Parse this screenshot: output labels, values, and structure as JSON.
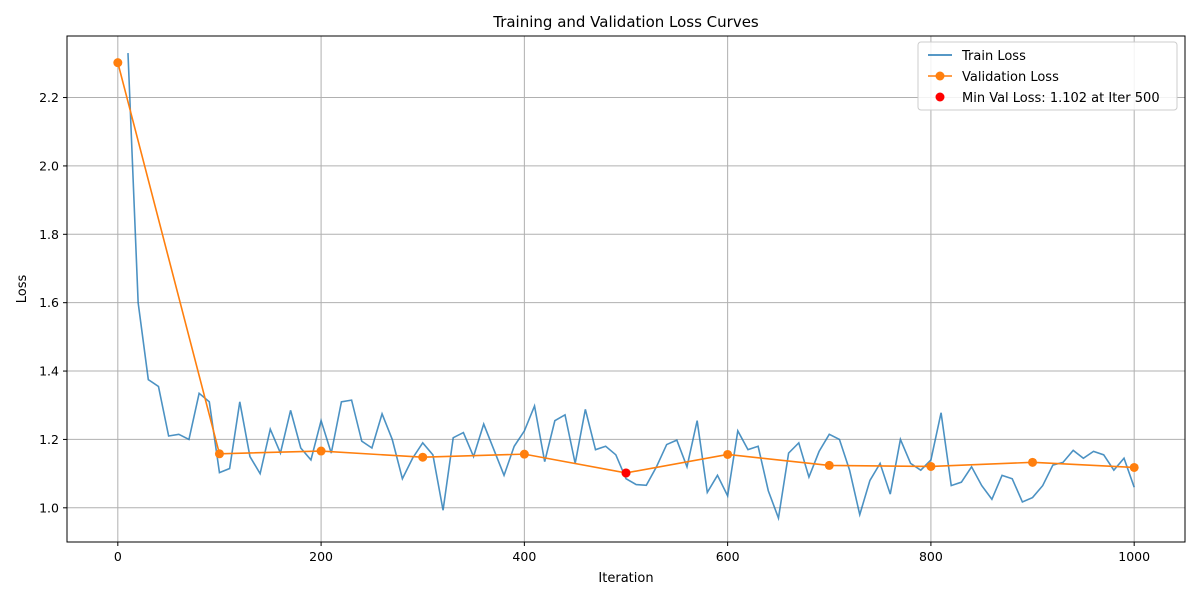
{
  "chart_data": {
    "type": "line",
    "title": "Training and Validation Loss Curves",
    "xlabel": "Iteration",
    "ylabel": "Loss",
    "xlim": [
      -50,
      1050
    ],
    "ylim": [
      0.9,
      2.38
    ],
    "xticks": [
      0,
      200,
      400,
      600,
      800,
      1000
    ],
    "yticks": [
      1.0,
      1.2,
      1.4,
      1.6,
      1.8,
      2.0,
      2.2
    ],
    "grid": true,
    "legend_position": "top-right",
    "series": [
      {
        "name": "Train Loss",
        "color": "#1f77b4",
        "marker": "none",
        "x": [
          10,
          20,
          30,
          40,
          50,
          60,
          70,
          80,
          90,
          100,
          110,
          120,
          130,
          140,
          150,
          160,
          170,
          180,
          190,
          200,
          210,
          220,
          230,
          240,
          250,
          260,
          270,
          280,
          290,
          300,
          310,
          320,
          330,
          340,
          350,
          360,
          370,
          380,
          390,
          400,
          410,
          420,
          430,
          440,
          450,
          460,
          470,
          480,
          490,
          500,
          510,
          520,
          530,
          540,
          550,
          560,
          570,
          580,
          590,
          600,
          610,
          620,
          630,
          640,
          650,
          660,
          670,
          680,
          690,
          700,
          710,
          720,
          730,
          740,
          750,
          760,
          770,
          780,
          790,
          800,
          810,
          820,
          830,
          840,
          850,
          860,
          870,
          880,
          890,
          900,
          910,
          920,
          930,
          940,
          950,
          960,
          970,
          980,
          990,
          1000
        ],
        "y": [
          2.33,
          1.6,
          1.375,
          1.355,
          1.21,
          1.215,
          1.2,
          1.335,
          1.31,
          1.103,
          1.115,
          1.31,
          1.15,
          1.1,
          1.23,
          1.16,
          1.285,
          1.175,
          1.14,
          1.255,
          1.16,
          1.31,
          1.315,
          1.195,
          1.175,
          1.275,
          1.2,
          1.085,
          1.145,
          1.19,
          1.155,
          0.993,
          1.205,
          1.22,
          1.15,
          1.245,
          1.17,
          1.095,
          1.18,
          1.225,
          1.298,
          1.135,
          1.255,
          1.272,
          1.13,
          1.288,
          1.17,
          1.18,
          1.155,
          1.085,
          1.068,
          1.066,
          1.12,
          1.185,
          1.198,
          1.12,
          1.255,
          1.045,
          1.095,
          1.035,
          1.225,
          1.17,
          1.18,
          1.05,
          0.97,
          1.16,
          1.19,
          1.09,
          1.165,
          1.215,
          1.2,
          1.11,
          0.98,
          1.08,
          1.13,
          1.04,
          1.2,
          1.13,
          1.11,
          1.14,
          1.278,
          1.065,
          1.075,
          1.12,
          1.065,
          1.025,
          1.095,
          1.085,
          1.017,
          1.03,
          1.065,
          1.125,
          1.133,
          1.168,
          1.145,
          1.165,
          1.155,
          1.11,
          1.145,
          1.06
        ]
      },
      {
        "name": "Validation Loss",
        "color": "#ff7f0e",
        "marker": "circle",
        "x": [
          0,
          100,
          200,
          300,
          400,
          500,
          600,
          700,
          800,
          900,
          1000
        ],
        "y": [
          2.302,
          1.158,
          1.166,
          1.148,
          1.157,
          1.102,
          1.156,
          1.124,
          1.121,
          1.133,
          1.118
        ]
      },
      {
        "name": "Min Val Loss: 1.102 at Iter 500",
        "color": "#ff0000",
        "marker": "circle",
        "type": "scatter",
        "x": [
          500
        ],
        "y": [
          1.102
        ]
      }
    ]
  }
}
